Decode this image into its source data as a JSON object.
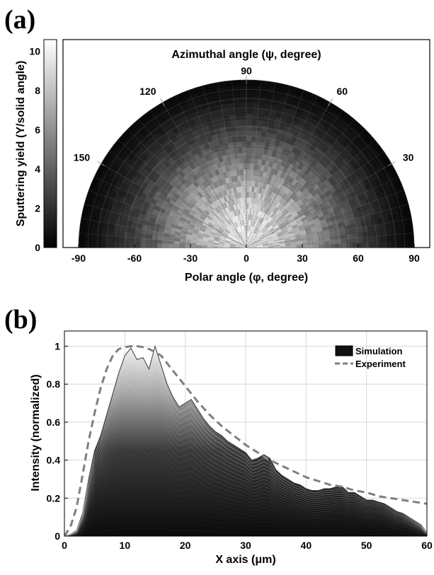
{
  "panel_labels": {
    "a": "(a)",
    "b": "(b)"
  },
  "chart_data": [
    {
      "type": "heatmap",
      "panel": "(a)",
      "title": "Azimuthal angle (ψ, degree)",
      "xlabel": "Polar angle (φ, degree)",
      "xticks": [
        -90,
        -60,
        -30,
        0,
        30,
        60,
        90
      ],
      "xlim": [
        -90,
        90
      ],
      "angle_ticks": [
        30,
        60,
        90,
        120,
        150
      ],
      "colorbar": {
        "label": "Sputtering yield (Y/solid angle)",
        "ticks": [
          0,
          2,
          4,
          6,
          8,
          10
        ],
        "range": [
          0,
          10.6
        ]
      },
      "radial_profile": {
        "polar_deg": [
          0,
          10,
          20,
          30,
          40,
          50,
          60,
          70,
          80,
          90
        ],
        "yield": [
          9.2,
          9.0,
          8.3,
          7.1,
          5.6,
          4.0,
          2.6,
          1.5,
          0.7,
          0.2
        ]
      },
      "grid": true
    },
    {
      "type": "area",
      "panel": "(b)",
      "xlabel": "X axis (μm)",
      "ylabel": "Intensity (normalized)",
      "xlim": [
        0,
        60
      ],
      "ylim": [
        0,
        1.08
      ],
      "xticks": [
        0,
        10,
        20,
        30,
        40,
        50,
        60
      ],
      "yticks": [
        0,
        0.2,
        0.4,
        0.6,
        0.8,
        1
      ],
      "legend": "top-right",
      "grid": true,
      "series": [
        {
          "name": "Simulation",
          "style": "filled-area",
          "x": [
            0,
            1,
            2,
            3,
            4,
            5,
            6,
            7,
            8,
            9,
            10,
            11,
            12,
            13,
            14,
            15,
            16,
            17,
            18,
            19,
            20,
            21,
            22,
            23,
            24,
            25,
            26,
            27,
            28,
            29,
            30,
            31,
            32,
            33,
            34,
            35,
            36,
            37,
            38,
            39,
            40,
            41,
            42,
            43,
            44,
            45,
            46,
            47,
            48,
            49,
            50,
            51,
            52,
            53,
            54,
            55,
            56,
            57,
            58,
            59,
            60
          ],
          "values": [
            0,
            0.01,
            0.03,
            0.12,
            0.3,
            0.45,
            0.53,
            0.64,
            0.75,
            0.86,
            0.95,
            0.99,
            0.93,
            0.94,
            0.88,
            1.0,
            0.9,
            0.8,
            0.73,
            0.68,
            0.7,
            0.72,
            0.67,
            0.62,
            0.58,
            0.55,
            0.53,
            0.5,
            0.48,
            0.46,
            0.44,
            0.4,
            0.41,
            0.43,
            0.41,
            0.35,
            0.32,
            0.3,
            0.28,
            0.27,
            0.25,
            0.24,
            0.24,
            0.25,
            0.25,
            0.26,
            0.26,
            0.23,
            0.23,
            0.21,
            0.19,
            0.19,
            0.18,
            0.17,
            0.15,
            0.13,
            0.12,
            0.1,
            0.08,
            0.06,
            0.02
          ]
        },
        {
          "name": "Experiment",
          "style": "dashed",
          "x": [
            0,
            1,
            2,
            3,
            4,
            5,
            6,
            7,
            8,
            9,
            10,
            11,
            12,
            13,
            14,
            15,
            16,
            18,
            20,
            22,
            24,
            26,
            28,
            30,
            32,
            34,
            36,
            38,
            40,
            42,
            44,
            46,
            48,
            50,
            52,
            54,
            56,
            58,
            60
          ],
          "values": [
            0,
            0.05,
            0.15,
            0.32,
            0.5,
            0.65,
            0.78,
            0.88,
            0.95,
            0.985,
            0.995,
            1.0,
            1.0,
            0.995,
            0.985,
            0.97,
            0.95,
            0.87,
            0.79,
            0.71,
            0.64,
            0.58,
            0.53,
            0.48,
            0.44,
            0.4,
            0.37,
            0.34,
            0.31,
            0.29,
            0.27,
            0.26,
            0.24,
            0.23,
            0.21,
            0.2,
            0.19,
            0.18,
            0.17
          ]
        }
      ]
    }
  ]
}
